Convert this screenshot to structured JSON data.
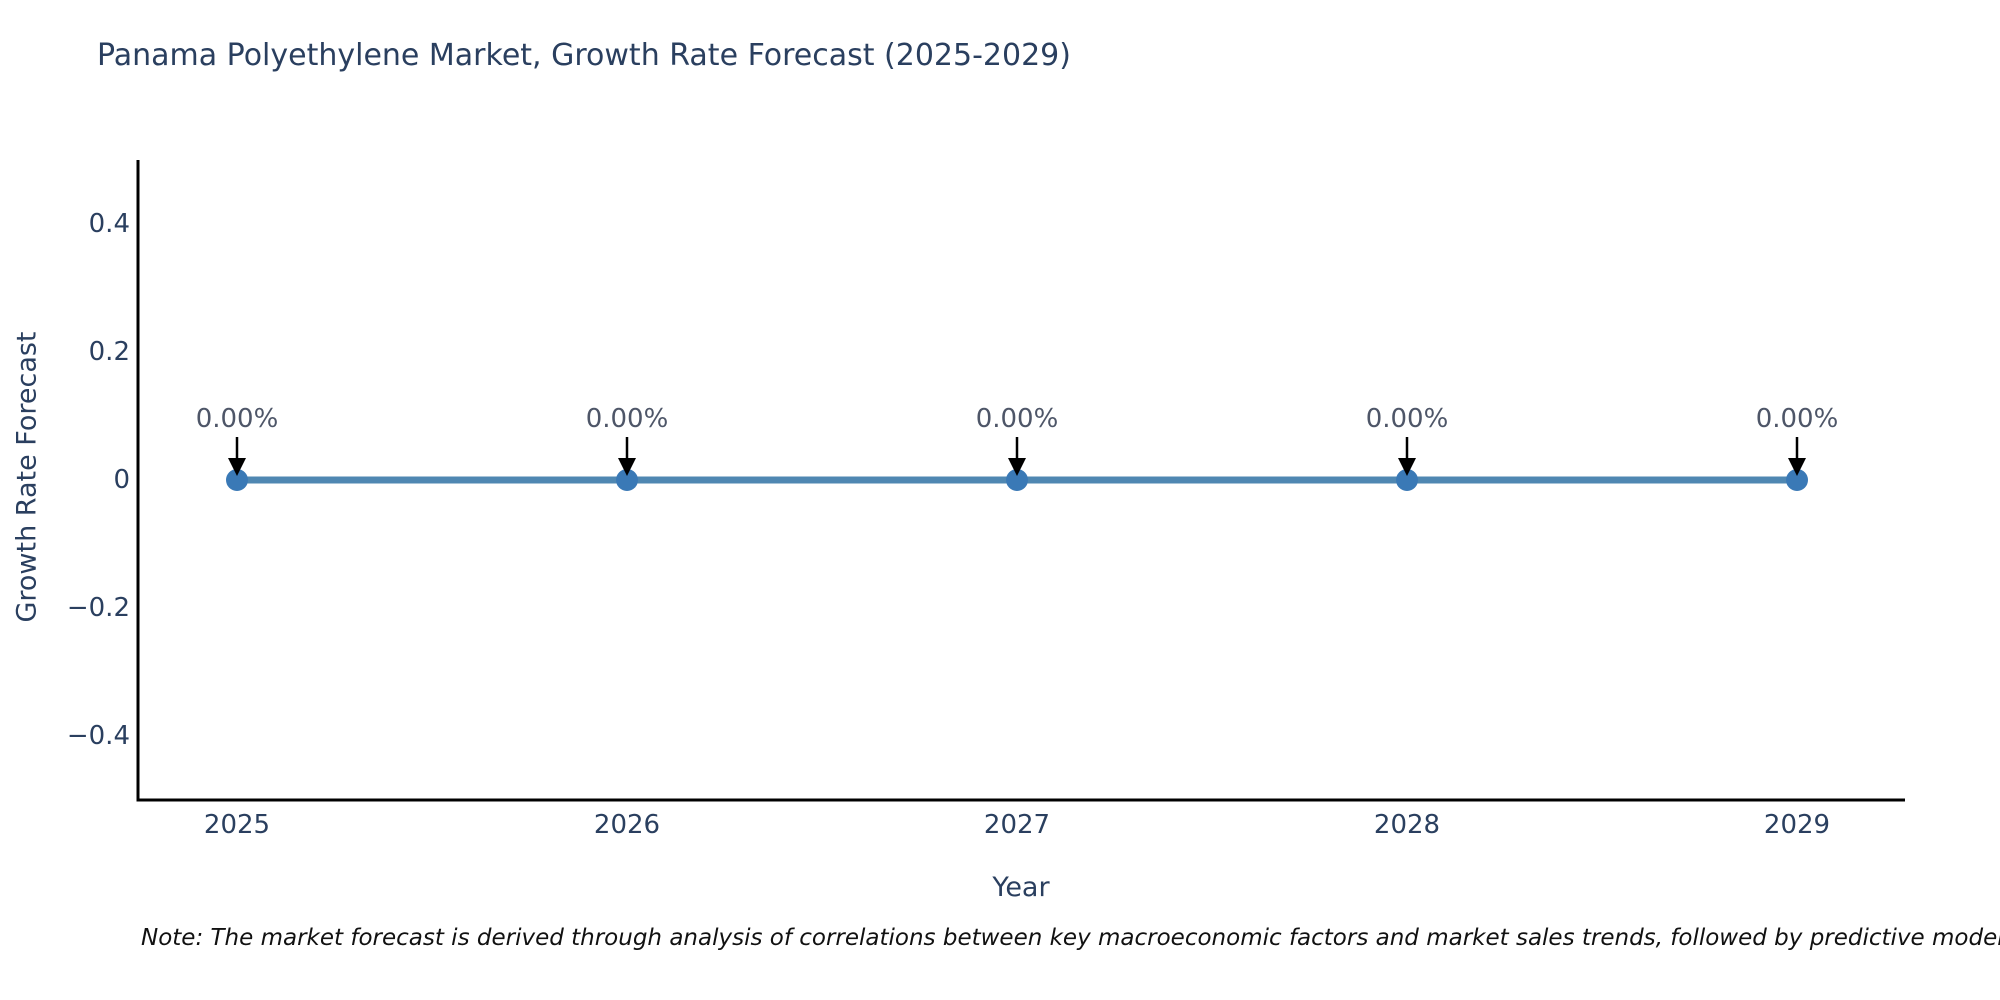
{
  "chart_data": {
    "type": "line",
    "title": "Panama Polyethylene Market, Growth Rate Forecast (2025-2029)",
    "xlabel": "Year",
    "ylabel": "Growth Rate Forecast",
    "x": [
      2025,
      2026,
      2027,
      2028,
      2029
    ],
    "xtick_labels": [
      "2025",
      "2026",
      "2027",
      "2028",
      "2029"
    ],
    "series": [
      {
        "name": "Growth Rate Forecast",
        "values": [
          0,
          0,
          0,
          0,
          0
        ]
      }
    ],
    "point_labels": [
      "0.00%",
      "0.00%",
      "0.00%",
      "0.00%",
      "0.00%"
    ],
    "ylim": [
      -0.5,
      0.5
    ],
    "yticks": [
      -0.4,
      -0.2,
      0,
      0.2,
      0.4
    ],
    "ytick_labels": [
      "−0.4",
      "−0.2",
      "0",
      "0.2",
      "0.4"
    ],
    "grid": false,
    "legend": "none",
    "colors": {
      "background": "#ffffff",
      "axis": "#000000",
      "line": "#4f87b2",
      "marker": "#3a79b6",
      "arrow": "#000000",
      "text": "#2a3f5f",
      "annotation": "#4e5668"
    }
  },
  "note": "Note: The market forecast is derived through analysis of correlations between key macroeconomic factors and market sales trends, followed by predictive modeling to project future sa"
}
